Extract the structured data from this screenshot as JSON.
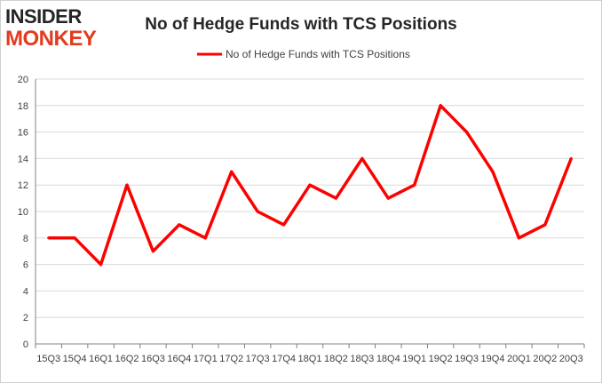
{
  "logo": {
    "line1": "INSIDER",
    "line2": "MONKEY"
  },
  "colors": {
    "series": "#ff0000",
    "grid": "#d9d9d9",
    "axis": "#808080",
    "text": "#404040",
    "logo_red": "#e23b1f",
    "logo_dark": "#262626"
  },
  "chart_data": {
    "type": "line",
    "title": "No of Hedge Funds with TCS Positions",
    "legend_position": "top-center",
    "grid": true,
    "ylim": [
      0,
      20
    ],
    "y_ticks": [
      0,
      2,
      4,
      6,
      8,
      10,
      12,
      14,
      16,
      18,
      20
    ],
    "categories": [
      "15Q3",
      "15Q4",
      "16Q1",
      "16Q2",
      "16Q3",
      "16Q4",
      "17Q1",
      "17Q2",
      "17Q3",
      "17Q4",
      "18Q1",
      "18Q2",
      "18Q3",
      "18Q4",
      "19Q1",
      "19Q2",
      "19Q3",
      "19Q4",
      "20Q1",
      "20Q2",
      "20Q3"
    ],
    "series": [
      {
        "name": "No of Hedge Funds with TCS Positions",
        "color": "#ff0000",
        "values": [
          8,
          8,
          6,
          12,
          7,
          9,
          8,
          13,
          10,
          9,
          12,
          11,
          14,
          11,
          12,
          18,
          16,
          13,
          8,
          9,
          14
        ]
      }
    ]
  }
}
